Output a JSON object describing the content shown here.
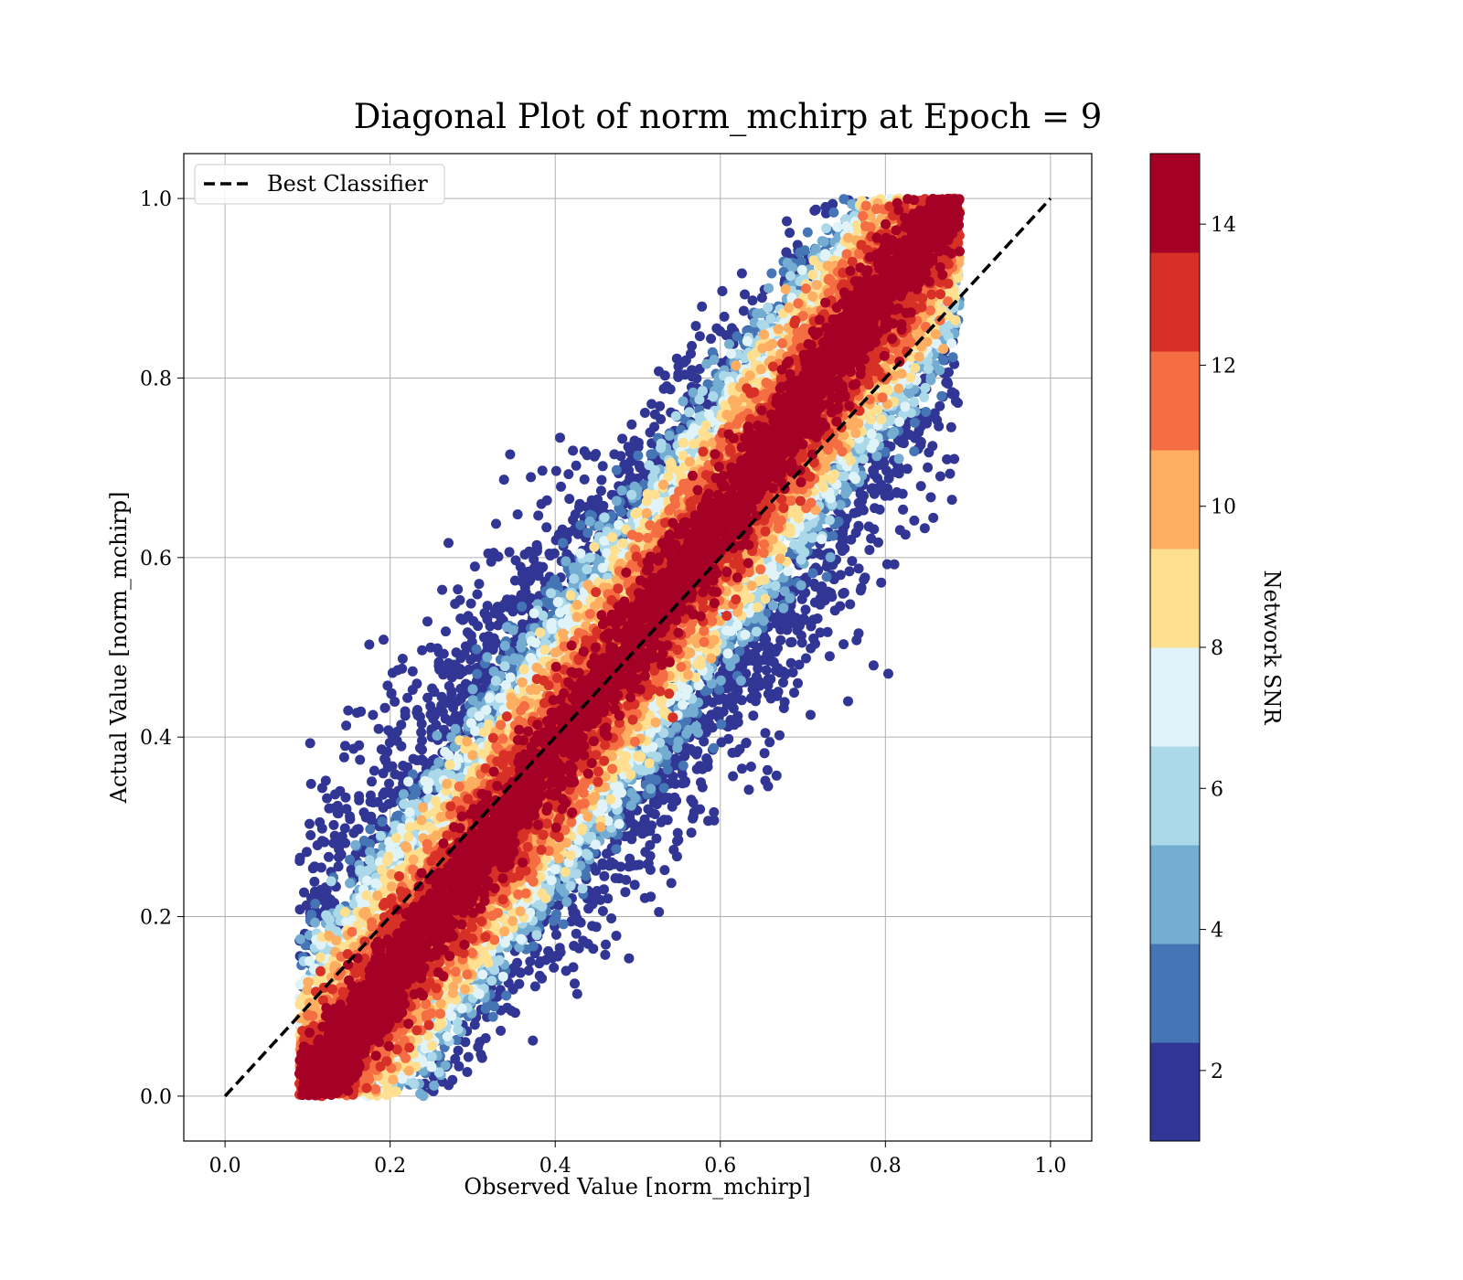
{
  "chart_data": {
    "type": "scatter",
    "title": "Diagonal Plot of norm_mchirp at Epoch = 9",
    "xlabel": "Observed Value [norm_mchirp]",
    "ylabel": "Actual Value [norm_mchirp]",
    "xlim": [
      -0.05,
      1.05
    ],
    "ylim": [
      -0.05,
      1.05
    ],
    "xticks": [
      "0.0",
      "0.2",
      "0.4",
      "0.6",
      "0.8",
      "1.0"
    ],
    "yticks": [
      "0.0",
      "0.2",
      "0.4",
      "0.6",
      "0.8",
      "1.0"
    ],
    "grid": true,
    "legend": {
      "position": "top-left",
      "entries": [
        "Best Classifier"
      ]
    },
    "reference_line": {
      "name": "Best Classifier",
      "x": [
        0.0,
        1.0
      ],
      "y": [
        0.0,
        1.0
      ],
      "style": "dashed",
      "color": "#000000"
    },
    "colorbar": {
      "label": "Network SNR",
      "vmin": 1,
      "vmax": 15,
      "ticks": [
        "2",
        "4",
        "6",
        "8",
        "10",
        "12",
        "14"
      ],
      "colormap": "RdYlBu_r (10 discrete bins)",
      "colors": [
        "#313695",
        "#4575b4",
        "#74add1",
        "#abd9e9",
        "#e0f3f8",
        "#fee090",
        "#fdae61",
        "#f46d43",
        "#d73027",
        "#a50026"
      ]
    },
    "scatter_description_counts": {
      "points_approx": 20000
    },
    "series": [
      {
        "points_distribution": "dense band around y = x, spread widest near x 0.2–0.6; high-SNR points (dark red) concentrated along diagonal, low-SNR points (blue) scattered farther from diagonal",
        "x_range": [
          0.09,
          0.89
        ],
        "y_range": [
          0.0,
          1.0
        ]
      }
    ]
  }
}
